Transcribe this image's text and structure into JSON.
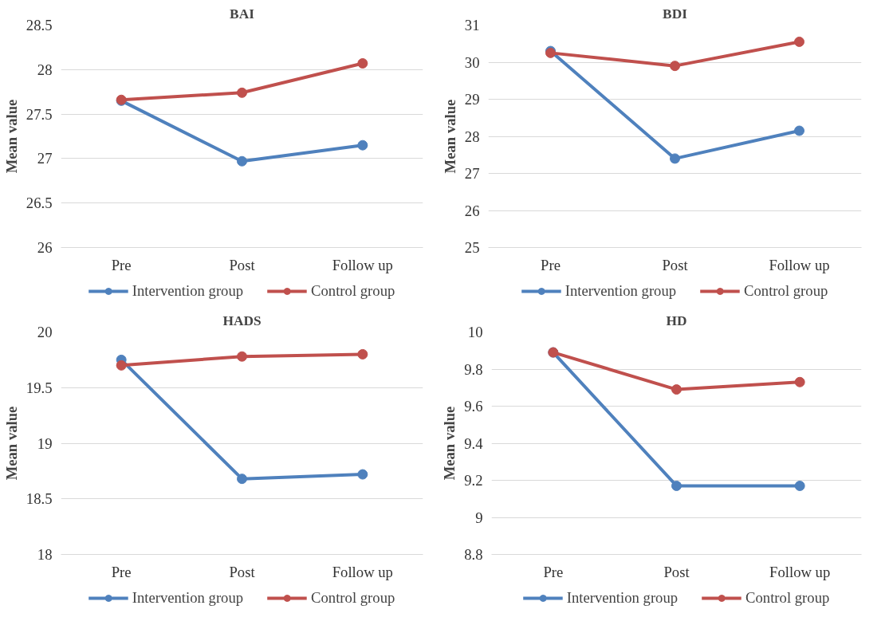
{
  "chart_data": [
    {
      "type": "line",
      "title": "BAI",
      "ylabel": "Mean value",
      "categories": [
        "Pre",
        "Post",
        "Follow up"
      ],
      "ylim": [
        26,
        28.5
      ],
      "yticks": [
        26,
        26.5,
        27,
        27.5,
        28,
        28.5
      ],
      "grid": "y",
      "legend": "bottom",
      "marker": "circle",
      "line_style": "solid",
      "series": [
        {
          "name": "Intervention group",
          "color": "#4f81bd",
          "values": [
            27.65,
            26.97,
            27.15
          ]
        },
        {
          "name": "Control group",
          "color": "#c0504d",
          "values": [
            27.66,
            27.74,
            28.07
          ]
        }
      ]
    },
    {
      "type": "line",
      "title": "BDI",
      "ylabel": "Mean value",
      "categories": [
        "Pre",
        "Post",
        "Follow up"
      ],
      "ylim": [
        25,
        31
      ],
      "yticks": [
        25,
        26,
        27,
        28,
        29,
        30,
        31
      ],
      "grid": "y",
      "legend": "bottom",
      "marker": "circle",
      "line_style": "solid",
      "series": [
        {
          "name": "Intervention group",
          "color": "#4f81bd",
          "values": [
            30.3,
            27.4,
            28.15
          ]
        },
        {
          "name": "Control group",
          "color": "#c0504d",
          "values": [
            30.25,
            29.9,
            30.55
          ]
        }
      ]
    },
    {
      "type": "line",
      "title": "HADS",
      "ylabel": "Mean value",
      "categories": [
        "Pre",
        "Post",
        "Follow up"
      ],
      "ylim": [
        18,
        20
      ],
      "yticks": [
        18,
        18.5,
        19,
        19.5,
        20
      ],
      "grid": "y",
      "legend": "bottom",
      "marker": "circle",
      "line_style": "solid",
      "series": [
        {
          "name": "Intervention group",
          "color": "#4f81bd",
          "values": [
            19.75,
            18.68,
            18.72
          ]
        },
        {
          "name": "Control group",
          "color": "#c0504d",
          "values": [
            19.7,
            19.78,
            19.8
          ]
        }
      ]
    },
    {
      "type": "line",
      "title": "HD",
      "ylabel": "Mean value",
      "categories": [
        "Pre",
        "Post",
        "Follow up"
      ],
      "ylim": [
        8.8,
        10
      ],
      "yticks": [
        8.8,
        9,
        9.2,
        9.4,
        9.6,
        9.8,
        10
      ],
      "grid": "y",
      "legend": "bottom",
      "marker": "circle",
      "line_style": "solid",
      "series": [
        {
          "name": "Intervention group",
          "color": "#4f81bd",
          "values": [
            9.89,
            9.17,
            9.17
          ]
        },
        {
          "name": "Control group",
          "color": "#c0504d",
          "values": [
            9.89,
            9.69,
            9.73
          ]
        }
      ]
    }
  ]
}
